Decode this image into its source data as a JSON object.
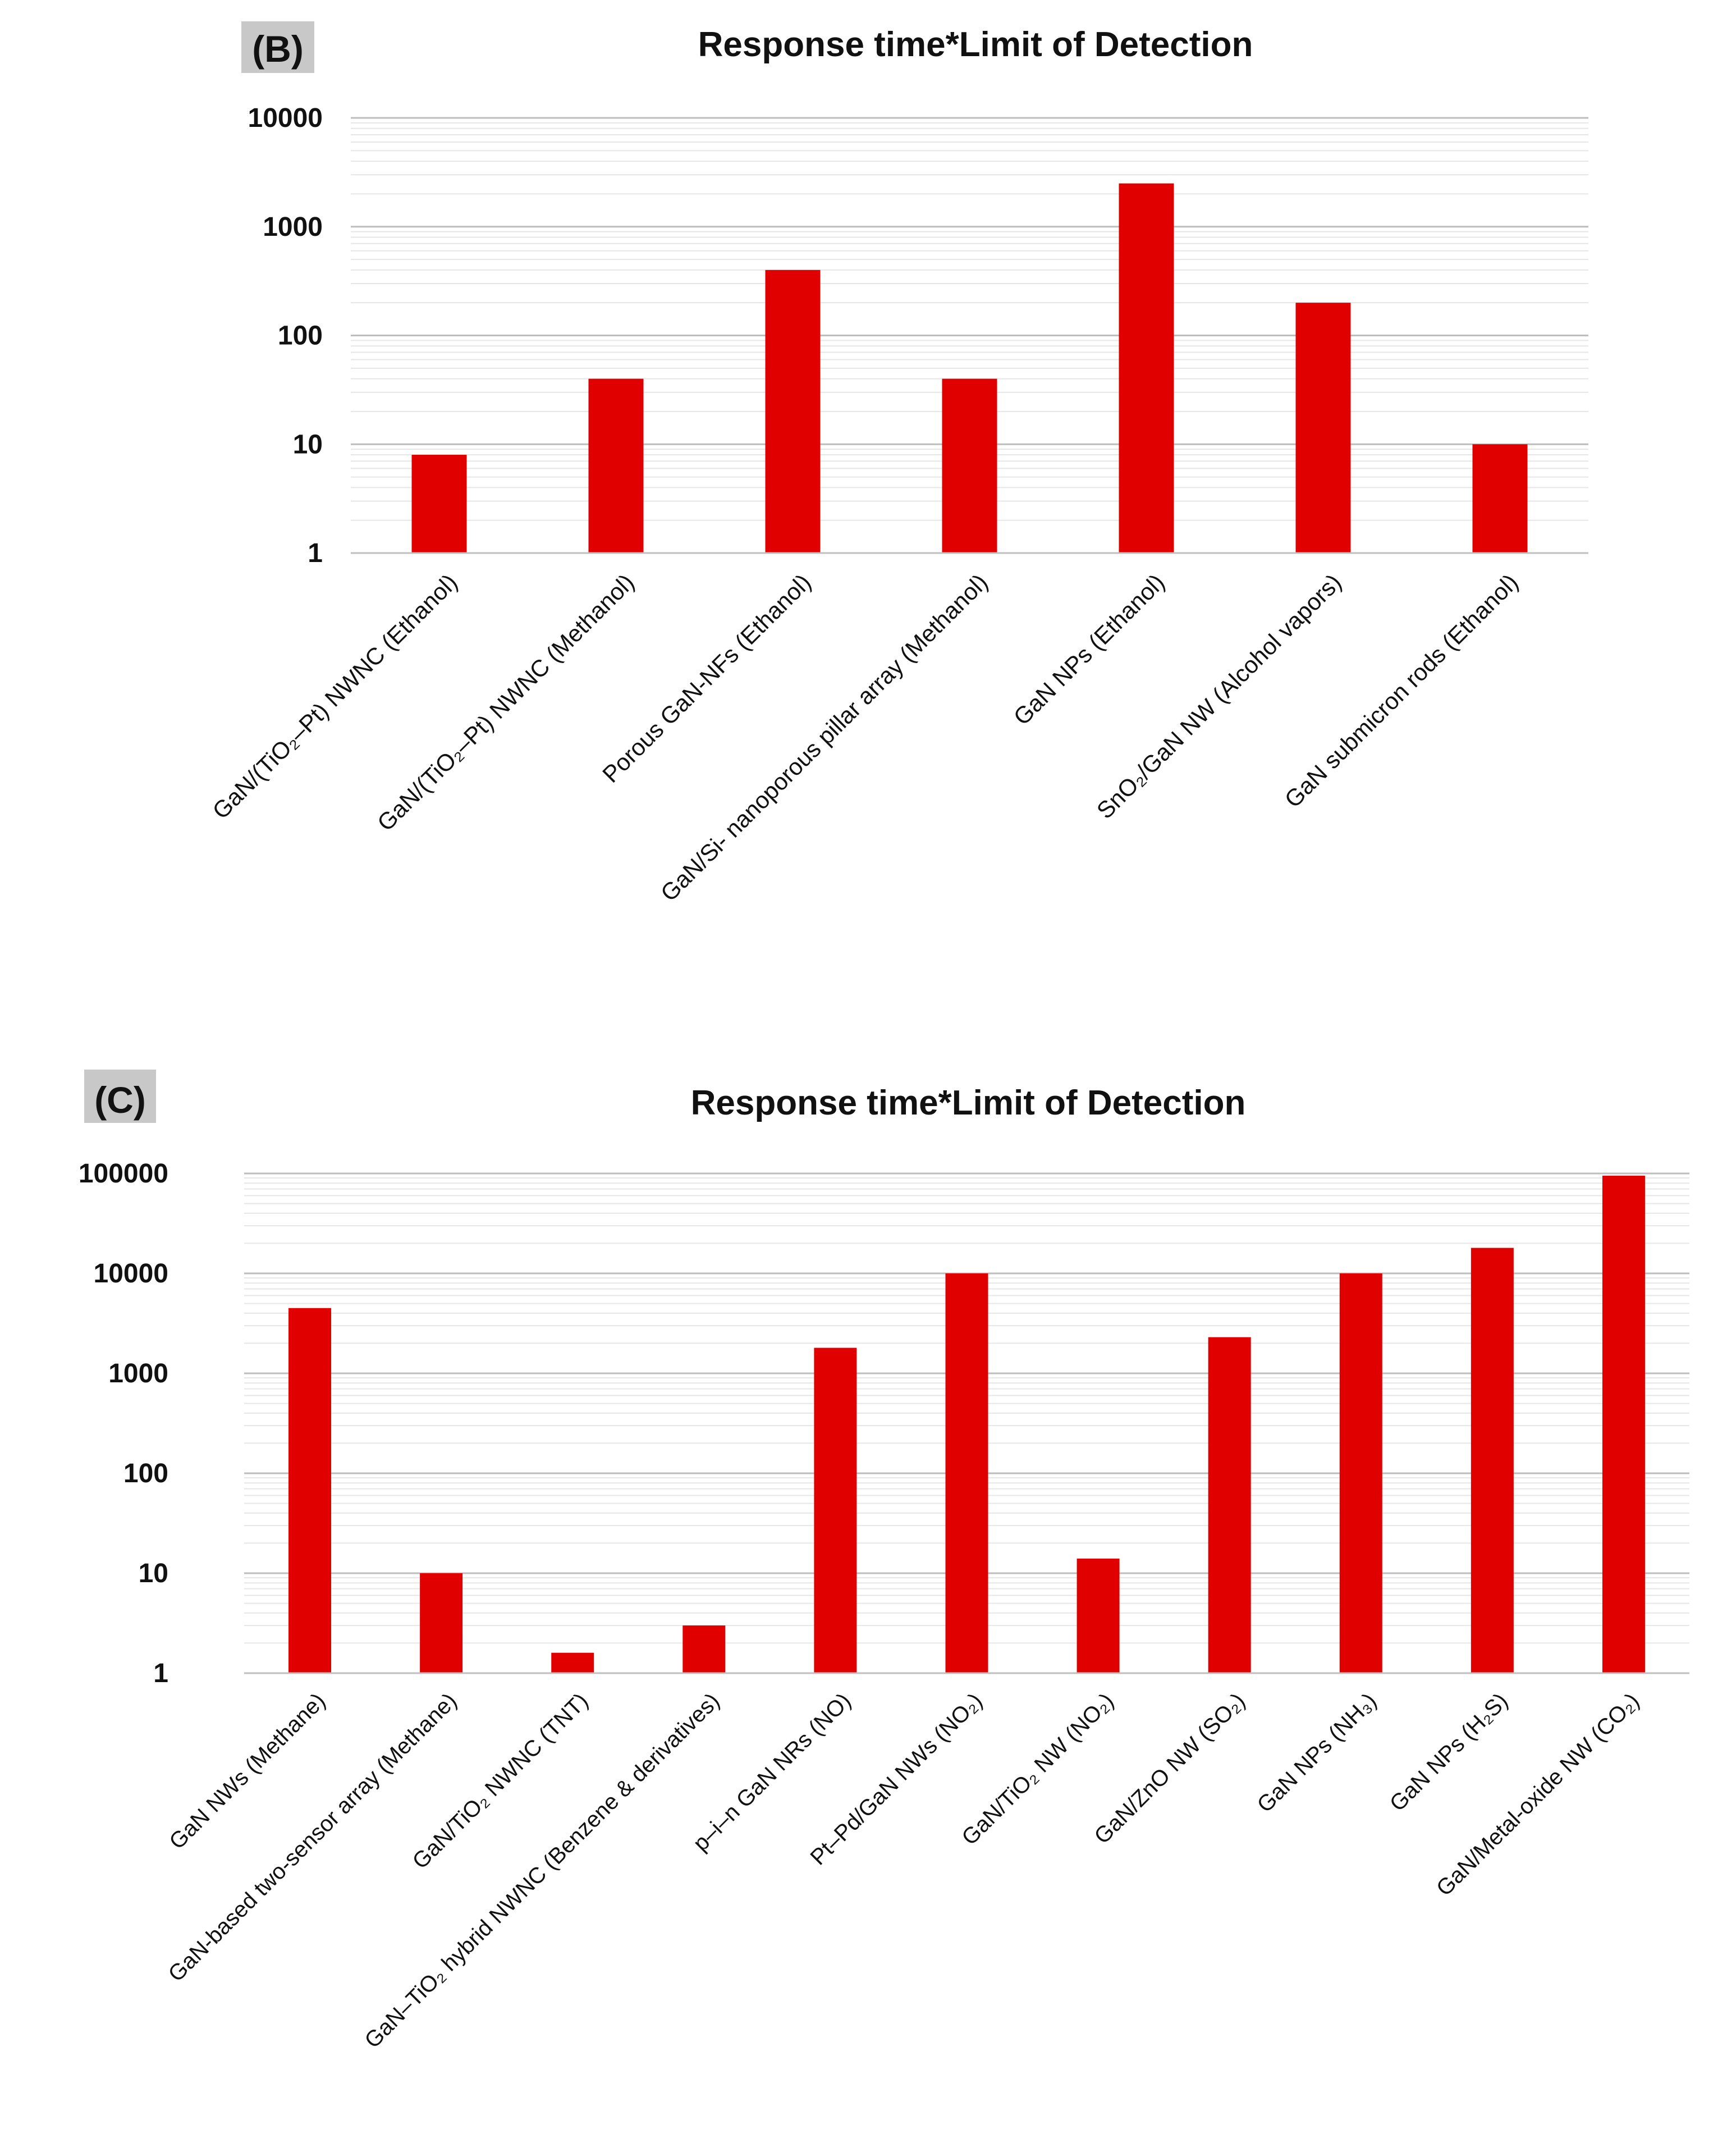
{
  "colors": {
    "bar": "#e00000",
    "grid_major": "#bdbdbd",
    "grid_minor": "#e6e6e6",
    "axis": "#bfbfbf",
    "label_box": "#c8c8c8",
    "text": "#111111"
  },
  "chart_data": [
    {
      "panel": "(B)",
      "type": "bar",
      "title": "Response time*Limit of Detection",
      "yscale": "log",
      "ylim": [
        1,
        10000
      ],
      "yticks": [
        "1",
        "10",
        "100",
        "1000",
        "10000"
      ],
      "xlabel": "",
      "ylabel": "",
      "grid": true,
      "categories": [
        "GaN/(TiO₂–Pt) NWNC (Ethanol)",
        "GaN/(TiO₂–Pt) NWNC (Methanol)",
        "Porous GaN-NFs (Ethanol)",
        "GaN/Si- nanoporous pillar array (Methanol)",
        "GaN NPs (Ethanol)",
        "SnO₂/GaN NW (Alcohol vapors)",
        "GaN submicron rods (Ethanol)"
      ],
      "values": [
        8,
        40,
        400,
        40,
        2500,
        200,
        10
      ]
    },
    {
      "panel": "(C)",
      "type": "bar",
      "title": "Response time*Limit of Detection",
      "yscale": "log",
      "ylim": [
        1,
        100000
      ],
      "yticks": [
        "1",
        "10",
        "100",
        "1000",
        "10000",
        "100000"
      ],
      "xlabel": "",
      "ylabel": "",
      "grid": true,
      "categories": [
        "GaN NWs (Methane)",
        "GaN-based two-sensor array (Methane)",
        "GaN/TiO₂ NWNC (TNT)",
        "GaN–TiO₂ hybrid NWNC (Benzene & derivatives)",
        "p–i–n GaN NRs (NO)",
        "Pt–Pd/GaN NWs (NO₂)",
        "GaN/TiO₂ NW (NO₂)",
        "GaN/ZnO NW (SO₂)",
        "GaN NPs (NH₃)",
        "GaN NPs (H₂S)",
        "GaN/Metal-oxide NW (CO₂)"
      ],
      "values": [
        4500,
        10,
        1.6,
        3,
        1800,
        10000,
        14,
        2300,
        10000,
        18000,
        95000
      ]
    }
  ]
}
